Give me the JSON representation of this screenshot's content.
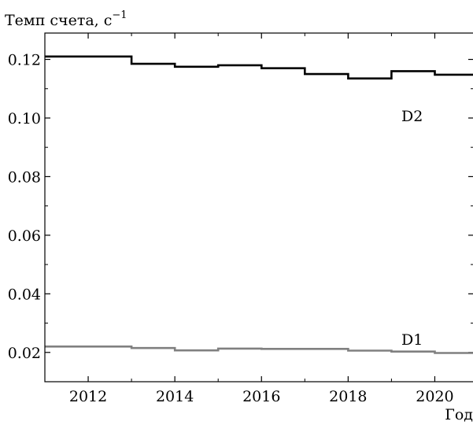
{
  "chart_data": {
    "type": "line",
    "step": true,
    "ylabel": "Темп счета, с",
    "ylabel_superscript": "−1",
    "xlabel": "Год",
    "xlim": [
      2011,
      2020.9
    ],
    "ylim": [
      0.01,
      0.129
    ],
    "xticks": [
      2012,
      2014,
      2016,
      2018,
      2020
    ],
    "xtick_labels": [
      "2012",
      "2014",
      "2016",
      "2018",
      "2020"
    ],
    "yticks": [
      0.02,
      0.04,
      0.06,
      0.08,
      0.1,
      0.12
    ],
    "ytick_labels": [
      "0.02",
      "0.04",
      "0.06",
      "0.08",
      "0.10",
      "0.12"
    ],
    "grid": false,
    "series": [
      {
        "name": "D2",
        "color": "#000000",
        "edges": [
          2011,
          2013,
          2014,
          2015,
          2016,
          2017,
          2018,
          2019,
          2020,
          2020.9
        ],
        "values": [
          0.121,
          0.1185,
          0.1175,
          0.118,
          0.117,
          0.115,
          0.1135,
          0.116,
          0.1148
        ]
      },
      {
        "name": "D1",
        "color": "#808080",
        "edges": [
          2011,
          2013,
          2014,
          2015,
          2016,
          2017,
          2018,
          2019,
          2020,
          2020.9
        ],
        "values": [
          0.022,
          0.0215,
          0.0207,
          0.0213,
          0.0212,
          0.0212,
          0.0206,
          0.0203,
          0.0198
        ]
      }
    ]
  }
}
